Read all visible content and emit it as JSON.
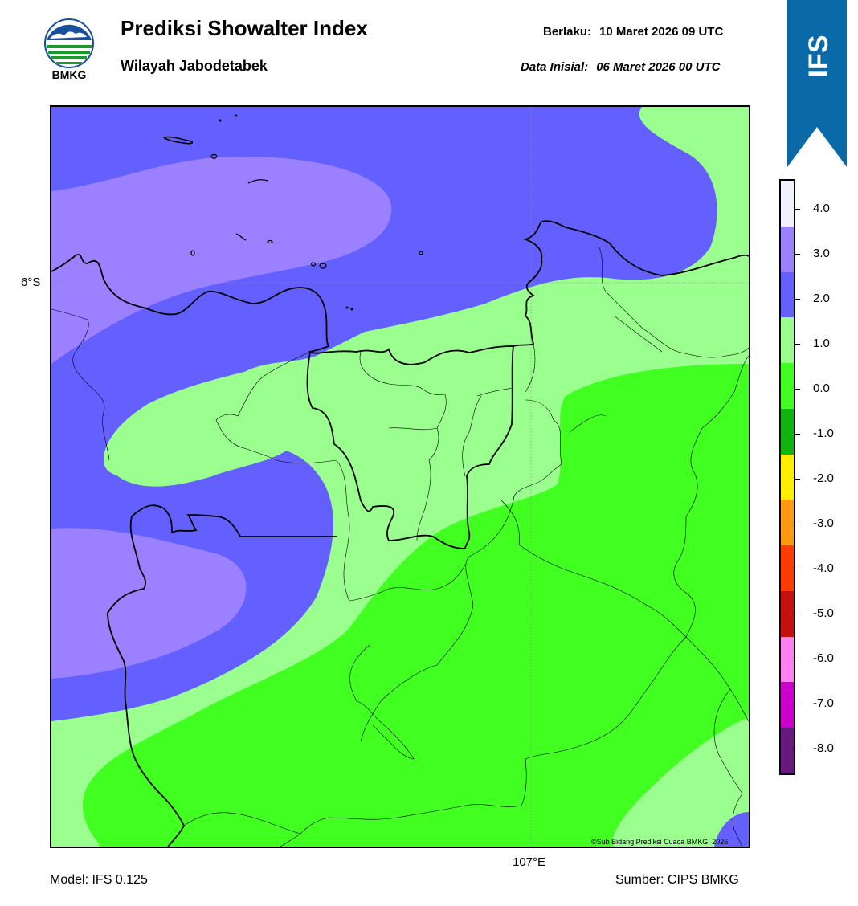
{
  "header": {
    "title": "Prediksi Showalter Index",
    "subtitle": "Wilayah Jabodetabek",
    "valid_label": "Berlaku:",
    "valid_value": "10 Maret 2026 09 UTC",
    "init_label": "Data Inisial:",
    "init_value": "06 Maret 2026 00 UTC"
  },
  "logo": {
    "text": "BMKG",
    "icon": "bmkg-logo"
  },
  "banner": {
    "text": "IFS",
    "color": "#0a6aa8"
  },
  "map": {
    "lat_label": "6°S",
    "lon_label": "107°E",
    "copyright": "©Sub Bidang Prediksi Cuaca BMKG, 2026",
    "zone_colors": {
      "light_green": "#9aff8f",
      "green": "#42ff22",
      "blue": "#6460ff",
      "lavender": "#9b80ff"
    }
  },
  "footer": {
    "model": "Model: IFS 0.125",
    "source": "Sumber: CIPS BMKG"
  },
  "colorbar": {
    "labels": [
      "4.0",
      "3.0",
      "2.0",
      "1.0",
      "0.0",
      "-1.0",
      "-2.0",
      "-3.0",
      "-4.0",
      "-5.0",
      "-6.0",
      "-7.0",
      "-8.0"
    ],
    "colors": [
      "#f0f0ff",
      "#9b80ff",
      "#6460ff",
      "#9aff8f",
      "#42ff22",
      "#0fb40f",
      "#ffee00",
      "#ff9910",
      "#ff3c00",
      "#c80f0f",
      "#ff80ee",
      "#cc00cc",
      "#661a80"
    ]
  }
}
